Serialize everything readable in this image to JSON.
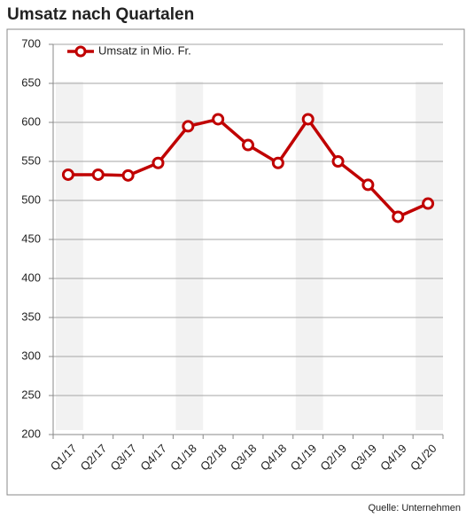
{
  "chart_data": {
    "type": "line",
    "title": "Umsatz nach Quartalen",
    "source": "Quelle: Unternehmen",
    "categories": [
      "Q1/17",
      "Q2/17",
      "Q3/17",
      "Q4/17",
      "Q1/18",
      "Q2/18",
      "Q3/18",
      "Q4/18",
      "Q1/19",
      "Q2/19",
      "Q3/19",
      "Q4/19",
      "Q1/20"
    ],
    "series": [
      {
        "name": "Umsatz in Mio. Fr.",
        "color": "#c00000",
        "values": [
          533,
          533,
          532,
          548,
          595,
          604,
          571,
          548,
          604,
          550,
          520,
          479,
          496
        ]
      }
    ],
    "ylim": [
      200,
      700
    ],
    "yticks": [
      200,
      250,
      300,
      350,
      400,
      450,
      500,
      550,
      600,
      650,
      700
    ],
    "grid": true,
    "legend": "top-left"
  }
}
